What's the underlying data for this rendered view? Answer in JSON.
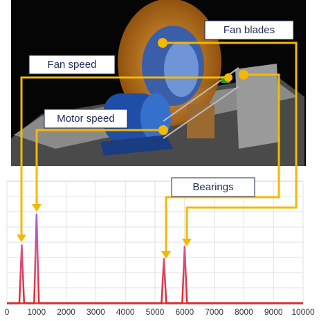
{
  "chart_data": {
    "type": "line",
    "x": [
      0,
      420,
      500,
      580,
      920,
      1000,
      1080,
      5220,
      5300,
      5380,
      5920,
      6000,
      6080,
      10000
    ],
    "values": [
      1,
      1,
      48,
      1,
      1,
      73,
      1,
      1,
      37,
      1,
      1,
      47,
      1,
      1
    ],
    "color": "#d9262b",
    "xlim": [
      0,
      10000
    ],
    "xticks": [
      0,
      1000,
      2000,
      3000,
      4000,
      5000,
      6000,
      7000,
      8000,
      9000,
      10000
    ],
    "ylim": [
      0,
      100
    ],
    "grid": true,
    "annotations": [
      "Fan blades",
      "Fan speed",
      "Motor speed",
      "Bearings"
    ]
  }
}
